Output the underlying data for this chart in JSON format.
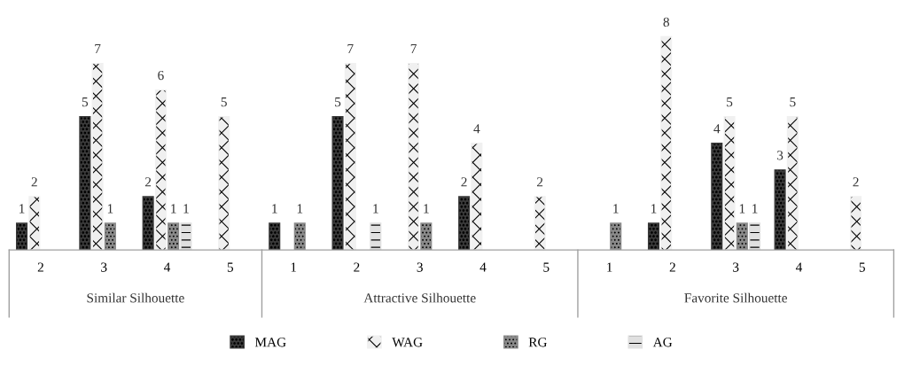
{
  "chart_data": {
    "type": "bar",
    "categories": [
      "2",
      "3",
      "4",
      "5",
      "1",
      "2",
      "3",
      "4",
      "5",
      "1",
      "2",
      "3",
      "4",
      "5"
    ],
    "series": [
      {
        "name": "MAG",
        "color": "#3a3a3a",
        "values": [
          1,
          5,
          2,
          null,
          1,
          5,
          null,
          2,
          null,
          null,
          1,
          4,
          3,
          null
        ]
      },
      {
        "name": "WAG",
        "color": "#f0f0f0",
        "values": [
          2,
          7,
          6,
          5,
          null,
          7,
          7,
          4,
          2,
          null,
          8,
          5,
          5,
          2
        ]
      },
      {
        "name": "RG",
        "color": "#8a8a8a",
        "values": [
          null,
          1,
          1,
          null,
          1,
          null,
          1,
          null,
          null,
          1,
          null,
          1,
          null,
          null
        ]
      },
      {
        "name": "AG",
        "color": "#e0e0e0",
        "values": [
          null,
          null,
          1,
          null,
          null,
          1,
          null,
          null,
          null,
          null,
          null,
          1,
          null,
          null
        ]
      }
    ],
    "annotations": [
      "Similar Silhouette",
      "Attractive Silhouette",
      "Favorite Silhouette"
    ],
    "data_labels": true,
    "legend": "bottom",
    "grid": false,
    "tick_labels": "x"
  }
}
